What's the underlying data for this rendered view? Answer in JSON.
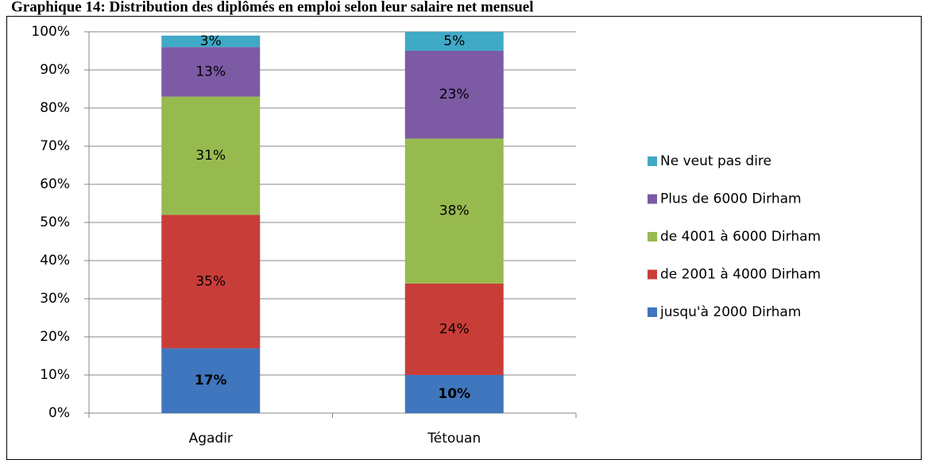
{
  "chart_data": {
    "type": "stacked_bar",
    "title": "Graphique 14: Distribution des diplômés en emploi selon leur salaire net mensuel",
    "categories": [
      "Agadir",
      "Tétouan"
    ],
    "series": [
      {
        "name": "jusqu'à 2000 Dirham",
        "color": "#3f76bd",
        "values": [
          17,
          10
        ],
        "value_labels": [
          "17%",
          "10%"
        ]
      },
      {
        "name": "de 2001 à 4000 Dirham",
        "color": "#c93d39",
        "values": [
          35,
          24
        ],
        "value_labels": [
          "35%",
          "24%"
        ]
      },
      {
        "name": "de 4001 à 6000 Dirham",
        "color": "#97ba4f",
        "values": [
          31,
          38
        ],
        "value_labels": [
          "31%",
          "38%"
        ]
      },
      {
        "name": "Plus de 6000 Dirham",
        "color": "#7c5aa4",
        "values": [
          13,
          23
        ],
        "value_labels": [
          "13%",
          "23%"
        ]
      },
      {
        "name": "Ne veut pas dire",
        "color": "#3fa9c6",
        "values": [
          3,
          5
        ],
        "value_labels": [
          "3%",
          "5%"
        ]
      }
    ],
    "ylim": [
      0,
      100
    ],
    "yticks": [
      {
        "value": 0,
        "label": "0%"
      },
      {
        "value": 10,
        "label": "10%"
      },
      {
        "value": 20,
        "label": "20%"
      },
      {
        "value": 30,
        "label": "30%"
      },
      {
        "value": 40,
        "label": "40%"
      },
      {
        "value": 50,
        "label": "50%"
      },
      {
        "value": 60,
        "label": "60%"
      },
      {
        "value": 70,
        "label": "70%"
      },
      {
        "value": 80,
        "label": "80%"
      },
      {
        "value": 90,
        "label": "90%"
      },
      {
        "value": 100,
        "label": "100%"
      }
    ],
    "grid": true,
    "legend": "right"
  }
}
